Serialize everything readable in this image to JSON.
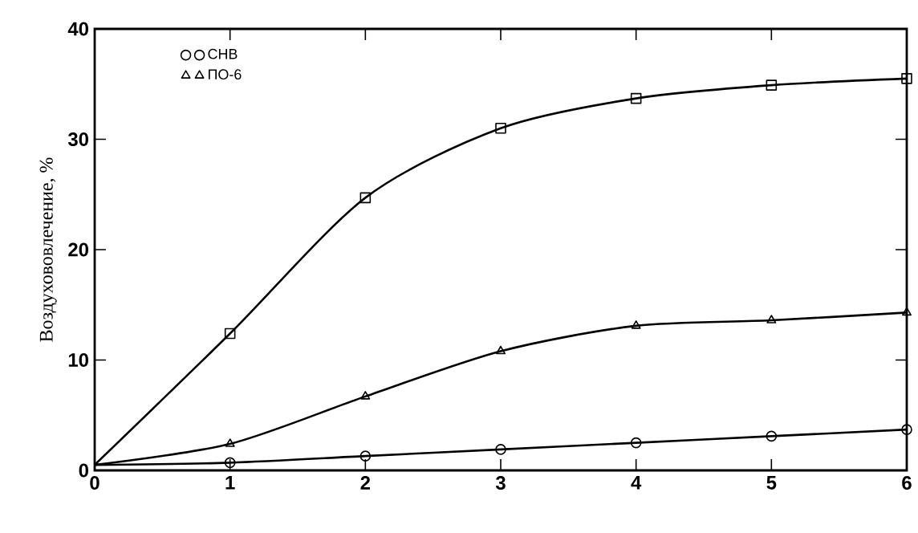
{
  "chart_data": {
    "type": "line",
    "ylabel": "Воздухововлечение, %",
    "x": [
      0,
      1,
      2,
      3,
      4,
      5,
      6
    ],
    "xlim": [
      0,
      6
    ],
    "ylim": [
      0,
      40
    ],
    "xticks": [
      0,
      1,
      2,
      3,
      4,
      5,
      6
    ],
    "yticks": [
      0,
      10,
      20,
      30,
      40
    ],
    "series": [
      {
        "name": "СНВ",
        "color": "#000000",
        "marker": "circle",
        "values": [
          0.5,
          0.7,
          1.3,
          1.9,
          2.5,
          3.1,
          3.7
        ]
      },
      {
        "name": "ПО-6",
        "color": "#000000",
        "marker": "triangle",
        "values": [
          0.5,
          2.4,
          6.7,
          10.8,
          13.1,
          13.6,
          14.3
        ]
      },
      {
        "color": "#000000",
        "marker": "square",
        "values": [
          0.5,
          12.4,
          24.7,
          31.0,
          33.7,
          34.9,
          35.5
        ]
      }
    ],
    "legend": "top left",
    "line_style": "solid",
    "grid": false
  }
}
